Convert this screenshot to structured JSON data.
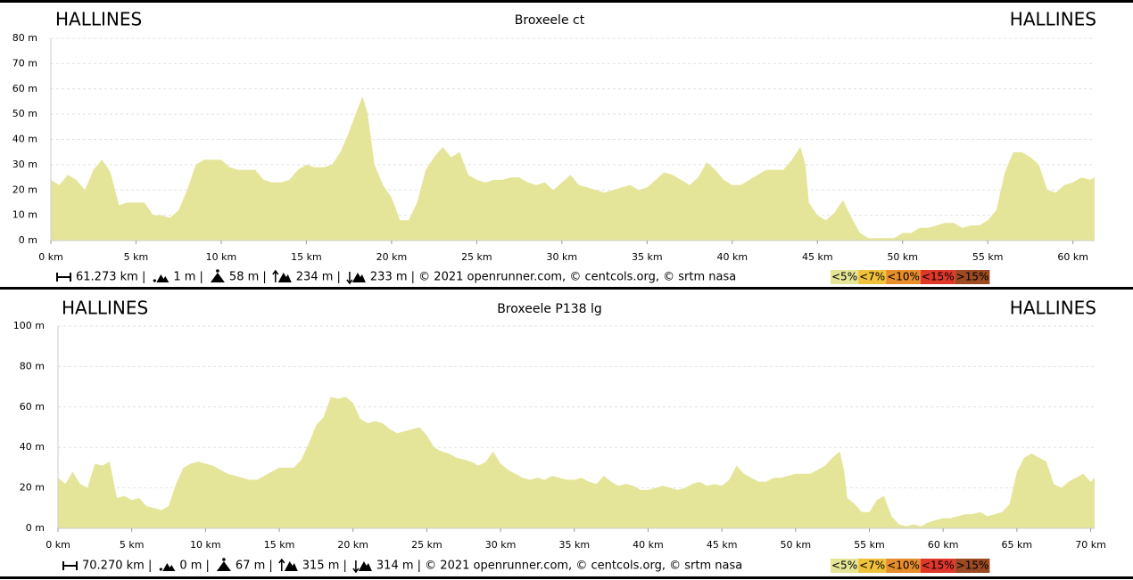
{
  "chart_data": [
    {
      "type": "area",
      "title": "Broxeele ct",
      "start_label": "HALLINES",
      "end_label": "HALLINES",
      "color": "#e5e59a",
      "x": [
        0,
        0.5,
        1,
        1.5,
        2,
        2.5,
        3,
        3.5,
        4,
        4.5,
        5,
        5.5,
        6,
        6.5,
        7,
        7.5,
        8,
        8.5,
        9,
        9.5,
        10,
        10.5,
        11,
        11.5,
        12,
        12.5,
        13,
        13.5,
        14,
        14.5,
        15,
        15.5,
        16,
        16.5,
        17,
        17.5,
        18,
        18.3,
        18.6,
        19,
        19.5,
        20,
        20.5,
        21,
        21.5,
        22,
        22.5,
        23,
        23.5,
        24,
        24.5,
        25,
        25.5,
        26,
        26.5,
        27,
        27.5,
        28,
        28.5,
        29,
        29.5,
        30,
        30.5,
        31,
        31.5,
        32,
        32.5,
        33,
        33.5,
        34,
        34.5,
        35,
        35.5,
        36,
        36.5,
        37,
        37.5,
        38,
        38.5,
        39,
        39.5,
        40,
        40.5,
        41,
        41.5,
        42,
        42.5,
        43,
        43.5,
        44,
        44.3,
        44.5,
        45,
        45.5,
        46,
        46.5,
        47,
        47.5,
        48,
        48.5,
        49,
        49.5,
        50,
        50.5,
        51,
        51.5,
        52,
        52.5,
        53,
        53.5,
        54,
        54.5,
        55,
        55.5,
        56,
        56.5,
        57,
        57.5,
        58,
        58.5,
        59,
        59.5,
        60,
        60.5,
        61,
        61.273
      ],
      "values": [
        24,
        22,
        26,
        24,
        20,
        28,
        32,
        27,
        14,
        15,
        15,
        15,
        10,
        10,
        9,
        12,
        20,
        30,
        32,
        32,
        32,
        29,
        28,
        28,
        28,
        24,
        23,
        23,
        24,
        28,
        30,
        29,
        29,
        30,
        35,
        43,
        52,
        57,
        50,
        30,
        22,
        17,
        8,
        8,
        15,
        28,
        33,
        37,
        33,
        35,
        26,
        24,
        23,
        24,
        24,
        25,
        25,
        23,
        22,
        23,
        20,
        23,
        26,
        22,
        21,
        20,
        19,
        20,
        21,
        22,
        20,
        21,
        24,
        27,
        26,
        24,
        22,
        25,
        31,
        28,
        24,
        22,
        22,
        24,
        26,
        28,
        28,
        28,
        32,
        37,
        30,
        15,
        10,
        8,
        11,
        16,
        9,
        3,
        1,
        1,
        1,
        1,
        3,
        3,
        5,
        5,
        6,
        7,
        7,
        5,
        6,
        6,
        8,
        12,
        27,
        35,
        35,
        33,
        30,
        20,
        19,
        22,
        23,
        25,
        24,
        25
      ],
      "xlim": [
        0,
        61.273
      ],
      "ylim": [
        0,
        80
      ],
      "grid": true,
      "xticks": [
        {
          "value": 0,
          "label": "0 km"
        },
        {
          "value": 5,
          "label": "5 km"
        },
        {
          "value": 10,
          "label": "10 km"
        },
        {
          "value": 15,
          "label": "15 km"
        },
        {
          "value": 20,
          "label": "20 km"
        },
        {
          "value": 25,
          "label": "25 km"
        },
        {
          "value": 30,
          "label": "30 km"
        },
        {
          "value": 35,
          "label": "35 km"
        },
        {
          "value": 40,
          "label": "40 km"
        },
        {
          "value": 45,
          "label": "45 km"
        },
        {
          "value": 50,
          "label": "50 km"
        },
        {
          "value": 55,
          "label": "55 km"
        },
        {
          "value": 60,
          "label": "60 km"
        }
      ],
      "yticks": [
        {
          "value": 0,
          "label": "0 m"
        },
        {
          "value": 10,
          "label": "10 m"
        },
        {
          "value": 20,
          "label": "20 m"
        },
        {
          "value": 30,
          "label": "30 m"
        },
        {
          "value": 40,
          "label": "40 m"
        },
        {
          "value": 50,
          "label": "50 m"
        },
        {
          "value": 60,
          "label": "60 m"
        },
        {
          "value": 70,
          "label": "70 m"
        },
        {
          "value": 80,
          "label": "80 m"
        }
      ],
      "stats": [
        "61.273 km |",
        "1 m |",
        "58 m |",
        "234 m |",
        "233 m | © 2021 openrunner.com, © centcols.org, © srtm nasa"
      ],
      "legend": [
        {
          "label": "<5%",
          "color": "#e5e597"
        },
        {
          "label": "<7%",
          "color": "#f0c23b"
        },
        {
          "label": "<10%",
          "color": "#e88d2b"
        },
        {
          "label": "<15%",
          "color": "#e0372b"
        },
        {
          "label": ">15%",
          "color": "#9b4a22"
        }
      ]
    },
    {
      "type": "area",
      "title": "Broxeele P138 lg",
      "start_label": "HALLINES",
      "end_label": "HALLINES",
      "color": "#e5e59a",
      "x": [
        0,
        0.5,
        1,
        1.5,
        2,
        2.5,
        3,
        3.5,
        4,
        4.5,
        5,
        5.5,
        6,
        6.5,
        7,
        7.5,
        8,
        8.5,
        9,
        9.5,
        10,
        10.5,
        11,
        11.5,
        12,
        12.5,
        13,
        13.5,
        14,
        14.5,
        15,
        15.5,
        16,
        16.5,
        17,
        17.5,
        18,
        18.5,
        19,
        19.5,
        20,
        20.5,
        21,
        21.5,
        22,
        22.5,
        23,
        23.5,
        24,
        24.5,
        25,
        25.5,
        26,
        26.5,
        27,
        27.5,
        28,
        28.5,
        29,
        29.5,
        30,
        30.5,
        31,
        31.5,
        32,
        32.5,
        33,
        33.5,
        34,
        34.5,
        35,
        35.5,
        36,
        36.5,
        37,
        37.5,
        38,
        38.5,
        39,
        39.5,
        40,
        40.5,
        41,
        41.5,
        42,
        42.5,
        43,
        43.5,
        44,
        44.5,
        45,
        45.5,
        46,
        46.5,
        47,
        47.5,
        48,
        48.5,
        49,
        49.5,
        50,
        50.5,
        51,
        51.5,
        52,
        52.5,
        53,
        53.3,
        53.5,
        54,
        54.5,
        55,
        55.5,
        56,
        56.5,
        57,
        57.5,
        58,
        58.5,
        59,
        59.5,
        60,
        60.5,
        61,
        61.5,
        62,
        62.5,
        63,
        63.5,
        64,
        64.5,
        65,
        65.5,
        66,
        66.5,
        67,
        67.5,
        68,
        68.5,
        69,
        69.5,
        70,
        70.27
      ],
      "values": [
        25,
        22,
        28,
        22,
        20,
        32,
        31,
        33,
        15,
        16,
        14,
        15,
        11,
        10,
        9,
        11,
        22,
        30,
        32,
        33,
        32,
        31,
        29,
        27,
        26,
        25,
        24,
        24,
        26,
        28,
        30,
        30,
        30,
        34,
        42,
        51,
        55,
        65,
        64,
        65,
        62,
        54,
        52,
        53,
        52,
        49,
        47,
        48,
        49,
        50,
        46,
        40,
        38,
        37,
        35,
        34,
        33,
        31,
        33,
        38,
        32,
        29,
        27,
        25,
        24,
        25,
        24,
        26,
        25,
        24,
        24,
        25,
        23,
        22,
        26,
        23,
        21,
        22,
        21,
        19,
        19,
        20,
        21,
        20,
        19,
        20,
        22,
        23,
        21,
        22,
        21,
        24,
        31,
        27,
        25,
        23,
        23,
        25,
        25,
        26,
        27,
        27,
        27,
        29,
        31,
        35,
        38,
        28,
        15,
        12,
        8,
        8,
        14,
        16,
        6,
        2,
        1,
        2,
        1,
        3,
        4,
        5,
        5,
        6,
        7,
        7,
        8,
        6,
        7,
        8,
        12,
        28,
        35,
        37,
        35,
        33,
        22,
        20,
        23,
        25,
        27,
        23,
        25
      ],
      "xlim": [
        0,
        70.27
      ],
      "ylim": [
        0,
        100
      ],
      "grid": true,
      "xticks": [
        {
          "value": 0,
          "label": "0 km"
        },
        {
          "value": 5,
          "label": "5 km"
        },
        {
          "value": 10,
          "label": "10 km"
        },
        {
          "value": 15,
          "label": "15 km"
        },
        {
          "value": 20,
          "label": "20 km"
        },
        {
          "value": 25,
          "label": "25 km"
        },
        {
          "value": 30,
          "label": "30 km"
        },
        {
          "value": 35,
          "label": "35 km"
        },
        {
          "value": 40,
          "label": "40 km"
        },
        {
          "value": 45,
          "label": "45 km"
        },
        {
          "value": 50,
          "label": "50 km"
        },
        {
          "value": 55,
          "label": "55 km"
        },
        {
          "value": 60,
          "label": "60 km"
        },
        {
          "value": 65,
          "label": "65 km"
        },
        {
          "value": 70,
          "label": "70 km"
        }
      ],
      "yticks": [
        {
          "value": 0,
          "label": "0 m"
        },
        {
          "value": 20,
          "label": "20 m"
        },
        {
          "value": 40,
          "label": "40 m"
        },
        {
          "value": 60,
          "label": "60 m"
        },
        {
          "value": 80,
          "label": "80 m"
        },
        {
          "value": 100,
          "label": "100 m"
        }
      ],
      "stats": [
        "70.270 km |",
        "0 m |",
        "67 m |",
        "315 m |",
        "314 m | © 2021 openrunner.com, © centcols.org, © srtm nasa"
      ],
      "legend": [
        {
          "label": "<5%",
          "color": "#e5e597"
        },
        {
          "label": "<7%",
          "color": "#f0c23b"
        },
        {
          "label": "<10%",
          "color": "#e88d2b"
        },
        {
          "label": "<15%",
          "color": "#e0372b"
        },
        {
          "label": ">15%",
          "color": "#9b4a22"
        }
      ]
    }
  ]
}
